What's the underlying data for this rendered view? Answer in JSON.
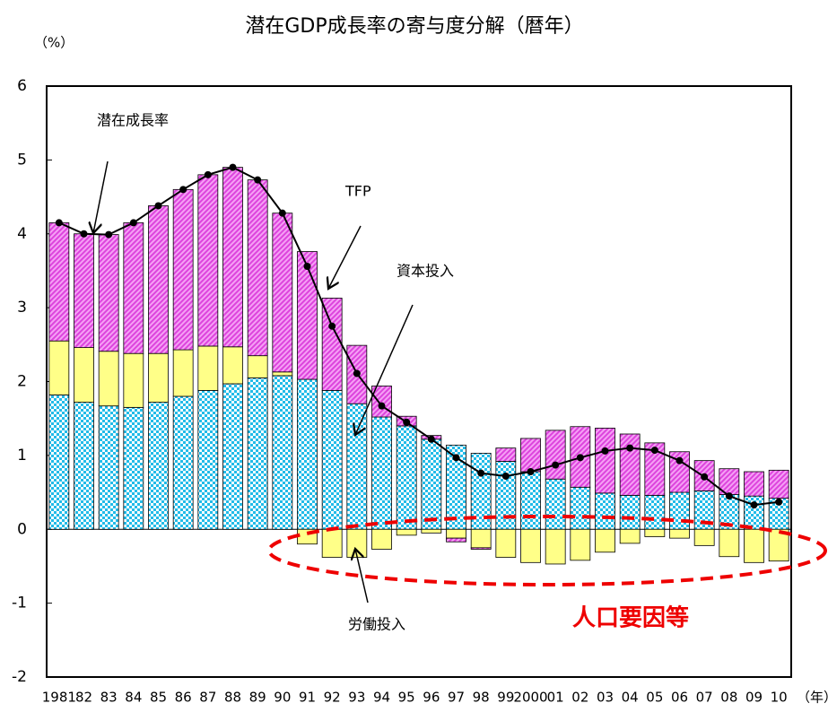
{
  "chart_data": {
    "type": "bar",
    "title": "潜在GDP成長率の寄与度分解（暦年）",
    "y_unit": "（%）",
    "x_unit": "（年）",
    "categories": [
      "1981",
      "82",
      "83",
      "84",
      "85",
      "86",
      "87",
      "88",
      "89",
      "90",
      "91",
      "92",
      "93",
      "94",
      "95",
      "96",
      "97",
      "98",
      "99",
      "2000",
      "01",
      "02",
      "03",
      "04",
      "05",
      "06",
      "07",
      "08",
      "09",
      "10"
    ],
    "series": [
      {
        "name": "資本投入",
        "color": "#33ccee",
        "values": [
          1.82,
          1.72,
          1.67,
          1.65,
          1.72,
          1.8,
          1.88,
          1.97,
          2.05,
          2.08,
          2.03,
          1.88,
          1.7,
          1.52,
          1.4,
          1.22,
          1.14,
          1.03,
          0.92,
          0.78,
          0.68,
          0.57,
          0.49,
          0.46,
          0.46,
          0.5,
          0.52,
          0.47,
          0.45,
          0.42
        ]
      },
      {
        "name": "労働投入",
        "color": "#ffff99",
        "values": [
          0.73,
          0.74,
          0.74,
          0.73,
          0.66,
          0.63,
          0.6,
          0.5,
          0.3,
          0.05,
          -0.2,
          -0.38,
          -0.38,
          -0.27,
          -0.08,
          -0.05,
          -0.12,
          -0.25,
          -0.38,
          -0.45,
          -0.47,
          -0.42,
          -0.31,
          -0.19,
          -0.1,
          -0.12,
          -0.22,
          -0.37,
          -0.45,
          -0.43
        ]
      },
      {
        "name": "TFP",
        "color": "#ee66ee",
        "values": [
          1.6,
          1.54,
          1.58,
          1.77,
          2.0,
          2.17,
          2.32,
          2.43,
          2.38,
          2.15,
          1.73,
          1.25,
          0.79,
          0.42,
          0.13,
          0.05,
          -0.05,
          -0.02,
          0.18,
          0.45,
          0.66,
          0.82,
          0.88,
          0.83,
          0.71,
          0.55,
          0.41,
          0.35,
          0.33,
          0.38
        ]
      },
      {
        "name": "潜在成長率",
        "type": "line",
        "color": "#000000",
        "values": [
          4.15,
          4.0,
          3.99,
          4.15,
          4.38,
          4.6,
          4.8,
          4.9,
          4.73,
          4.28,
          3.56,
          2.75,
          2.11,
          1.67,
          1.45,
          1.22,
          0.97,
          0.76,
          0.72,
          0.78,
          0.87,
          0.97,
          1.06,
          1.1,
          1.07,
          0.93,
          0.71,
          0.45,
          0.33,
          0.37
        ]
      }
    ],
    "annotation": "人口要因等",
    "ylim": [
      -2,
      6
    ],
    "yticks": [
      -2,
      -1,
      0,
      1,
      2,
      3,
      4,
      5,
      6
    ]
  }
}
